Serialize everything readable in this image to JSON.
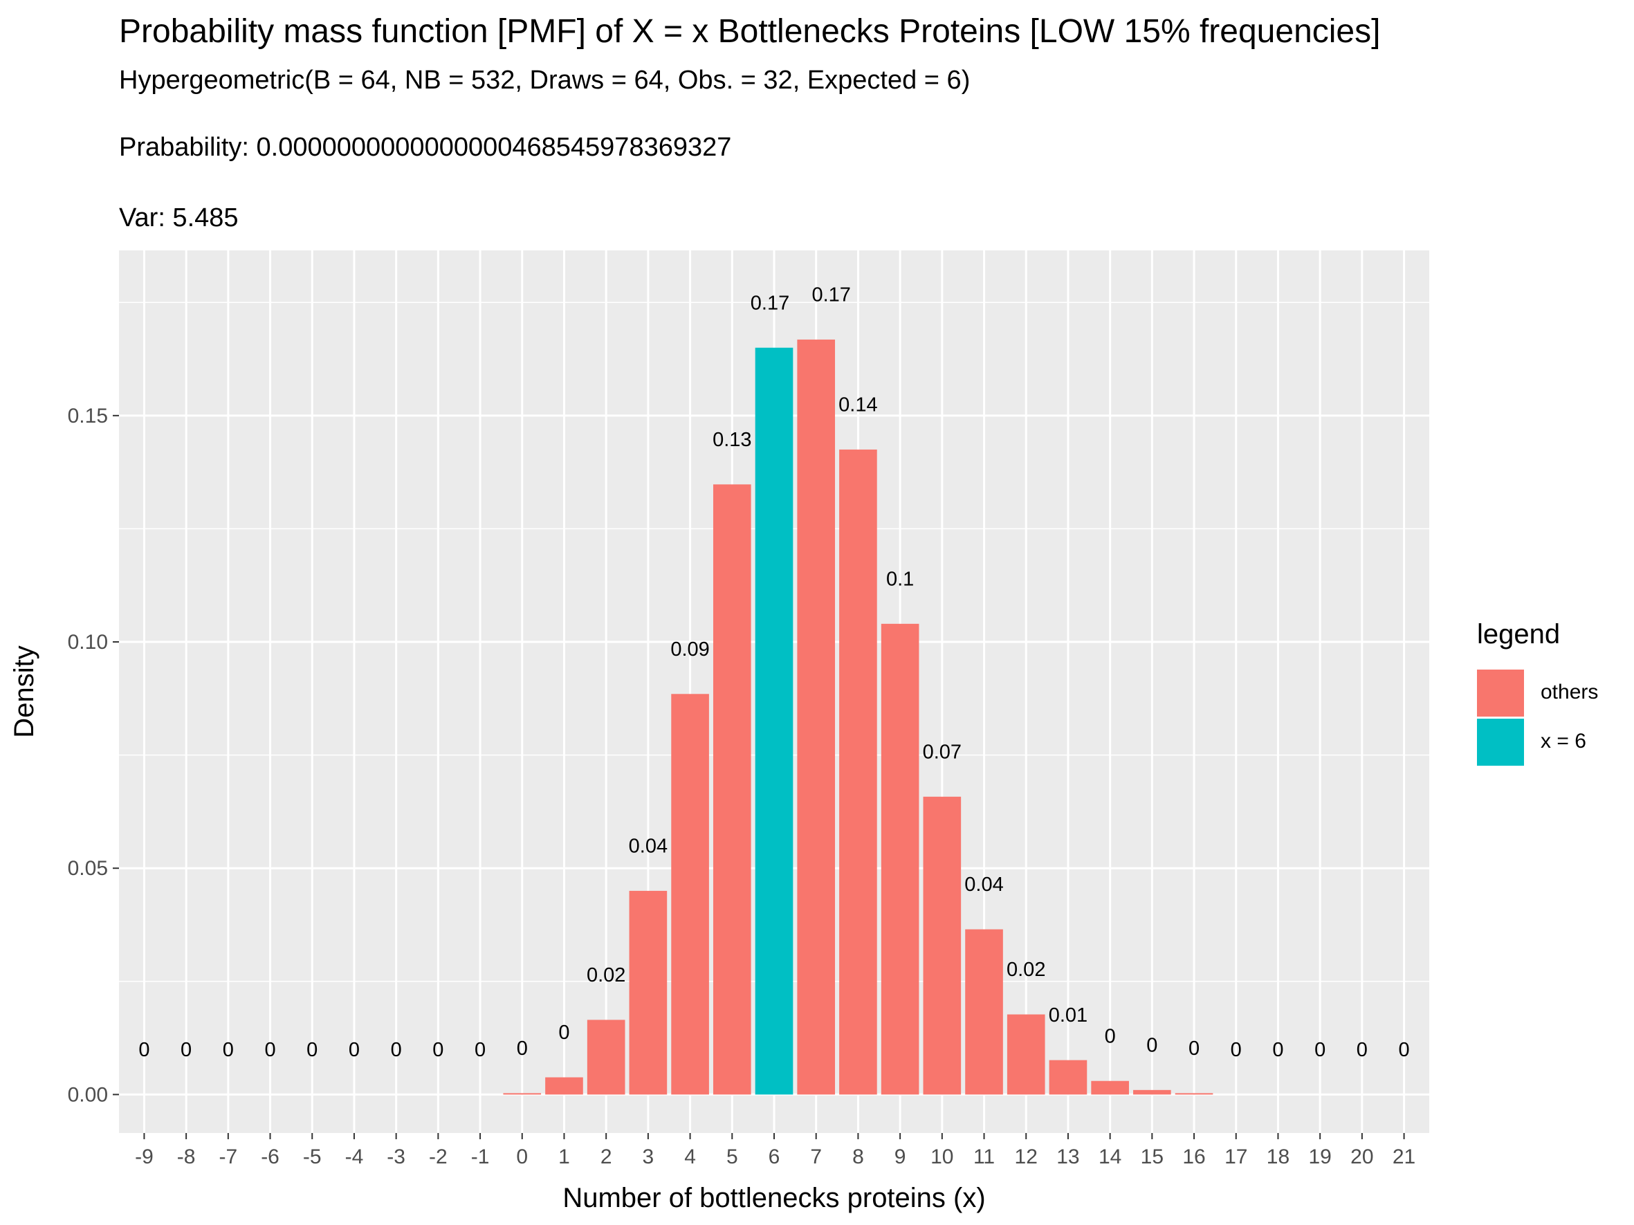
{
  "chart_data": {
    "type": "bar",
    "title": "Probability mass function [PMF] of X = x Bottlenecks Proteins [LOW 15% frequencies]",
    "subtitle": "Hypergeometric(B = 64, NB = 532, Draws = 64, Obs. = 32, Expected = 6)",
    "probability_text": "Prabability: 0.0000000000000000468545978369327",
    "var_text": "Var: 5.485",
    "xlabel": "Number of bottlenecks proteins (x)",
    "ylabel": "Density",
    "ylim": [
      -0.0085,
      0.1865
    ],
    "yticks": [
      0.0,
      0.05,
      0.1,
      0.15
    ],
    "ytick_labels": [
      "0.00",
      "0.05",
      "0.10",
      "0.15"
    ],
    "x": [
      -9,
      -8,
      -7,
      -6,
      -5,
      -4,
      -3,
      -2,
      -1,
      0,
      1,
      2,
      3,
      4,
      5,
      6,
      7,
      8,
      9,
      10,
      11,
      12,
      13,
      14,
      15,
      16,
      17,
      18,
      19,
      20,
      21
    ],
    "categories": [
      "-9",
      "-8",
      "-7",
      "-6",
      "-5",
      "-4",
      "-3",
      "-2",
      "-1",
      "0",
      "1",
      "2",
      "3",
      "4",
      "5",
      "6",
      "7",
      "8",
      "9",
      "10",
      "11",
      "12",
      "13",
      "14",
      "15",
      "16",
      "17",
      "18",
      "19",
      "20",
      "21"
    ],
    "values": [
      0,
      0,
      0,
      0,
      0,
      0,
      0,
      0,
      0,
      0.0003,
      0.0038,
      0.0165,
      0.045,
      0.0885,
      0.1348,
      0.165,
      0.1668,
      0.1425,
      0.104,
      0.0658,
      0.0365,
      0.0177,
      0.0076,
      0.003,
      0.001,
      0.0003,
      0,
      0,
      0,
      0,
      0
    ],
    "labels": [
      "0",
      "0",
      "0",
      "0",
      "0",
      "0",
      "0",
      "0",
      "0",
      "0",
      "0",
      "0.02",
      "0.04",
      "0.09",
      "0.13",
      "0.17",
      "0.17",
      "0.14",
      "0.1",
      "0.07",
      "0.04",
      "0.02",
      "0.01",
      "0",
      "0",
      "0",
      "0",
      "0",
      "0",
      "0",
      "0"
    ],
    "highlight": [
      15
    ],
    "colors": {
      "others": "#F8766D",
      "highlight": "#00BFC4",
      "panel": "#EBEBEB",
      "grid": "#FFFFFF",
      "axis_text": "#4D4D4D"
    },
    "legend": {
      "title": "legend",
      "position": "right",
      "entries": [
        {
          "label": "others",
          "color": "#F8766D"
        },
        {
          "label": "x = 6",
          "color": "#00BFC4"
        }
      ]
    }
  }
}
